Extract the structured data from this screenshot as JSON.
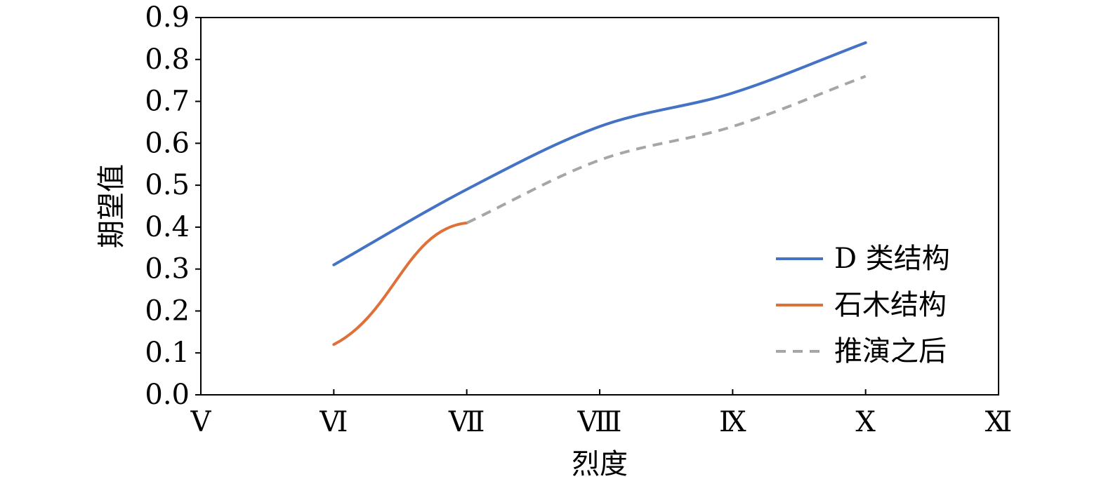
{
  "chart_data": {
    "type": "line",
    "xlabel": "烈度",
    "ylabel": "期望值",
    "x_categories": [
      "Ⅴ",
      "Ⅵ",
      "Ⅶ",
      "Ⅷ",
      "Ⅸ",
      "Ⅹ",
      "Ⅺ"
    ],
    "ylim": [
      0.0,
      0.9
    ],
    "yticks": [
      "0.0",
      "0.1",
      "0.2",
      "0.3",
      "0.4",
      "0.5",
      "0.6",
      "0.7",
      "0.8",
      "0.9"
    ],
    "grid": false,
    "legend_position": "bottom-right",
    "series": [
      {
        "name": "D 类结构",
        "color": "#4472C4",
        "style": "solid",
        "x": [
          "Ⅵ",
          "Ⅶ",
          "Ⅷ",
          "Ⅸ",
          "Ⅹ"
        ],
        "values": [
          0.31,
          0.49,
          0.64,
          0.72,
          0.84
        ]
      },
      {
        "name": "石木结构",
        "color": "#E0703A",
        "style": "solid",
        "x": [
          "Ⅵ",
          "Ⅶ"
        ],
        "values": [
          0.12,
          0.41
        ]
      },
      {
        "name": "推演之后",
        "color": "#A6A6A6",
        "style": "dashed",
        "x": [
          "Ⅶ",
          "Ⅷ",
          "Ⅸ",
          "Ⅹ"
        ],
        "values": [
          0.41,
          0.56,
          0.64,
          0.76
        ]
      }
    ]
  }
}
